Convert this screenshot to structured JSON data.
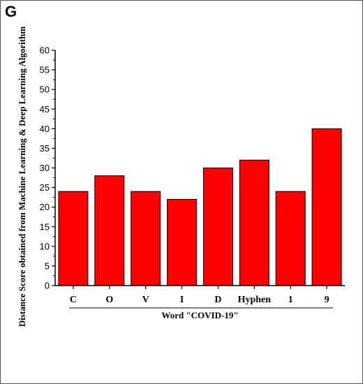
{
  "panel_label": "G",
  "chart_data": {
    "type": "bar",
    "categories": [
      "C",
      "O",
      "V",
      "I",
      "D",
      "Hyphen",
      "1",
      "9"
    ],
    "values": [
      24,
      28,
      24,
      22,
      30,
      32,
      24,
      40
    ],
    "title": "",
    "xlabel": "Word \"COVID-19\"",
    "ylabel": "Distance Score obtained from Machine Learning & Deep Learning Algorithm",
    "ylim": [
      0,
      60
    ],
    "yticks": [
      0,
      5,
      10,
      15,
      20,
      25,
      30,
      35,
      40,
      45,
      50,
      55,
      60
    ],
    "bar_color": "#ff0000",
    "grid": false,
    "legend": "none"
  }
}
